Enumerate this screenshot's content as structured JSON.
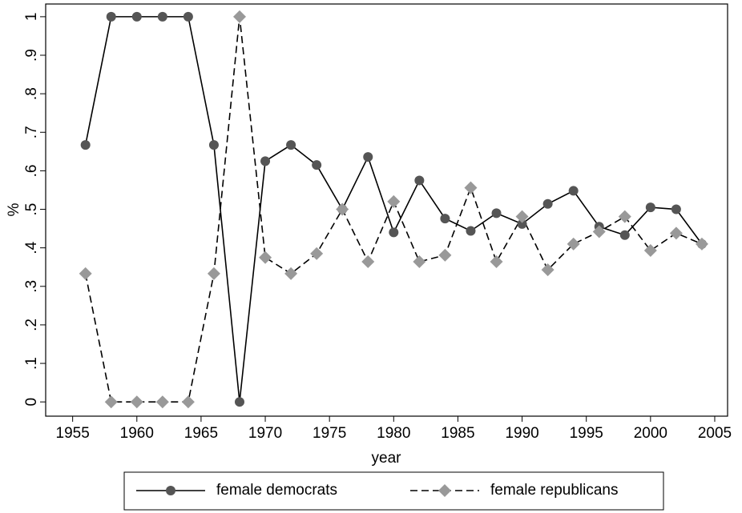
{
  "chart_data": {
    "type": "line",
    "x_label": "year",
    "y_label": "%",
    "x": [
      1956,
      1958,
      1960,
      1962,
      1964,
      1966,
      1968,
      1970,
      1972,
      1974,
      1976,
      1978,
      1980,
      1982,
      1984,
      1986,
      1988,
      1990,
      1992,
      1994,
      1996,
      1998,
      2000,
      2002,
      2004
    ],
    "series": [
      {
        "name": "female democrats",
        "color": "#555555",
        "marker": "circle",
        "dash": "solid",
        "values": [
          0.667,
          1,
          1,
          1,
          1,
          0.667,
          0,
          0.625,
          0.667,
          0.615,
          0.5,
          0.636,
          0.44,
          0.575,
          0.476,
          0.444,
          0.49,
          0.462,
          0.514,
          0.548,
          0.455,
          0.433,
          0.505,
          0.5,
          0.41
        ]
      },
      {
        "name": "female republicans",
        "color": "#999999",
        "marker": "diamond",
        "dash": "dashed",
        "values": [
          0.333,
          0,
          0,
          0,
          0,
          0.333,
          1,
          0.375,
          0.333,
          0.385,
          0.5,
          0.364,
          0.52,
          0.364,
          0.381,
          0.556,
          0.364,
          0.481,
          0.343,
          0.41,
          0.442,
          0.481,
          0.393,
          0.438,
          0.41
        ]
      }
    ],
    "xlim": [
      1952.9,
      2006
    ],
    "xticks": [
      1955,
      1960,
      1965,
      1970,
      1975,
      1980,
      1985,
      1990,
      1995,
      2000,
      2005
    ],
    "ylim": [
      -0.037,
      1.033
    ],
    "yticks": [
      0,
      {
        "value": 0.1,
        "label": ".1"
      },
      {
        "value": 0.2,
        "label": ".2"
      },
      {
        "value": 0.3,
        "label": ".3"
      },
      {
        "value": 0.4,
        "label": ".4"
      },
      {
        "value": 0.5,
        "label": ".5"
      },
      {
        "value": 0.6,
        "label": ".6"
      },
      {
        "value": 0.7,
        "label": ".7"
      },
      {
        "value": 0.8,
        "label": ".8"
      },
      {
        "value": 0.9,
        "label": ".9"
      },
      1
    ],
    "legend": "bottom"
  }
}
